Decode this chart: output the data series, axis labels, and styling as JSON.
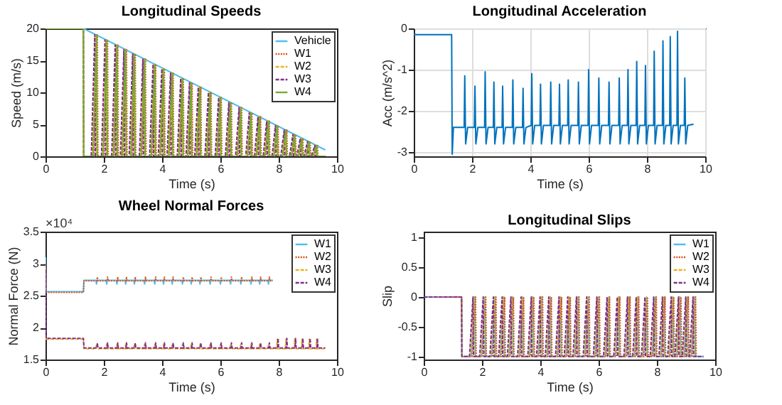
{
  "chart_data": [
    {
      "type": "line",
      "title": "Longitudinal Speeds",
      "xlabel": "Time (s)",
      "ylabel": "Speed (m/s)",
      "xlim": [
        0,
        10
      ],
      "xticks": [
        0,
        2,
        4,
        6,
        8,
        10
      ],
      "ylim": [
        0,
        20
      ],
      "yticks": [
        0,
        5,
        10,
        15,
        20
      ],
      "legend": "top right",
      "series": [
        {
          "name": "Vehicle",
          "color": "#4dbeee",
          "line_style": "solid",
          "x": [
            0,
            1.3,
            9.6
          ],
          "values": [
            20,
            20,
            1
          ]
        },
        {
          "name": "W1",
          "color": "#d95319",
          "line_style": "dotted",
          "x": [
            0,
            1.3,
            1.31,
            1.66,
            1.78,
            1.8,
            2.01,
            2.13,
            2.15,
            2.36,
            2.48,
            2.5,
            2.66,
            2.78,
            2.8,
            2.96,
            3.08,
            3.1,
            3.31,
            3.43,
            3.45,
            3.66,
            3.78,
            3.8,
            3.96,
            4.08,
            4.1,
            4.26,
            4.38,
            4.4,
            4.61,
            4.73,
            4.75,
            4.91,
            5.03,
            5.05,
            5.21,
            5.33,
            5.35,
            5.56,
            5.68,
            5.7,
            5.91,
            6.03,
            6.05,
            6.26,
            6.38,
            6.4,
            6.61,
            6.73,
            6.75,
            6.96,
            7.08,
            7.1,
            7.26,
            7.38,
            7.4,
            7.56,
            7.68,
            7.7,
            7.86,
            7.98,
            8.0,
            8.16,
            8.28,
            8.3,
            8.46,
            8.58,
            8.6,
            8.71,
            8.83,
            8.85,
            8.96,
            9.08,
            9.1,
            9.21,
            9.33,
            9.35,
            9.6
          ],
          "values": [
            20,
            20,
            0,
            0,
            19,
            0,
            0,
            18.2,
            0,
            0,
            17.4,
            0,
            0,
            16.7,
            0,
            0,
            16,
            0,
            0,
            15.2,
            0,
            0,
            14.4,
            0,
            0,
            13.7,
            0,
            0,
            13,
            0,
            0,
            12.2,
            0,
            0,
            11.5,
            0,
            0,
            10.8,
            0,
            0,
            10,
            0,
            0,
            9.2,
            0,
            0,
            8.4,
            0,
            0,
            7.6,
            0,
            0,
            6.8,
            0,
            0,
            6.2,
            0,
            0,
            5.5,
            0,
            0,
            4.8,
            0,
            0,
            4.1,
            0,
            0,
            3.4,
            0,
            0,
            2.8,
            0,
            0,
            2.3,
            0,
            0,
            1.7,
            0,
            0
          ]
        },
        {
          "name": "W2",
          "color": "#edb120",
          "line_style": "dashed",
          "x": [
            0,
            1.3,
            1.31,
            1.6,
            1.72,
            1.74,
            1.95,
            2.07,
            2.09,
            2.3,
            2.42,
            2.44,
            2.6,
            2.72,
            2.74,
            2.9,
            3.02,
            3.04,
            3.25,
            3.37,
            3.39,
            3.6,
            3.72,
            3.74,
            3.9,
            4.02,
            4.04,
            4.2,
            4.32,
            4.34,
            4.55,
            4.67,
            4.69,
            4.85,
            4.97,
            4.99,
            5.15,
            5.27,
            5.29,
            5.5,
            5.62,
            5.64,
            5.85,
            5.97,
            5.99,
            6.2,
            6.32,
            6.34,
            6.55,
            6.67,
            6.69,
            6.9,
            7.02,
            7.04,
            7.2,
            7.32,
            7.34,
            7.5,
            7.62,
            7.64,
            7.8,
            7.92,
            7.94,
            8.1,
            8.22,
            8.24,
            8.4,
            8.52,
            8.54,
            8.65,
            8.77,
            8.79,
            8.9,
            9.02,
            9.04,
            9.15,
            9.27,
            9.29,
            9.6
          ],
          "values": [
            20,
            20,
            0,
            0,
            19,
            0,
            0,
            18.2,
            0,
            0,
            17.4,
            0,
            0,
            16.7,
            0,
            0,
            16,
            0,
            0,
            15.2,
            0,
            0,
            14.4,
            0,
            0,
            13.7,
            0,
            0,
            13,
            0,
            0,
            12.2,
            0,
            0,
            11.5,
            0,
            0,
            10.8,
            0,
            0,
            10,
            0,
            0,
            9.2,
            0,
            0,
            8.4,
            0,
            0,
            7.6,
            0,
            0,
            6.8,
            0,
            0,
            6.2,
            0,
            0,
            5.5,
            0,
            0,
            4.8,
            0,
            0,
            4.1,
            0,
            0,
            3.4,
            0,
            0,
            2.8,
            0,
            0,
            2.3,
            0,
            0,
            1.7,
            0,
            0
          ]
        },
        {
          "name": "W3",
          "color": "#7e2f8e",
          "line_style": "dashed",
          "x": [
            0,
            1.3,
            1.31,
            1.57,
            1.69,
            1.71,
            1.92,
            2.04,
            2.06,
            2.27,
            2.39,
            2.41,
            2.57,
            2.69,
            2.71,
            2.87,
            2.99,
            3.01,
            3.22,
            3.34,
            3.36,
            3.57,
            3.69,
            3.71,
            3.87,
            3.99,
            4.01,
            4.17,
            4.29,
            4.31,
            4.52,
            4.64,
            4.66,
            4.82,
            4.94,
            4.96,
            5.12,
            5.24,
            5.26,
            5.47,
            5.59,
            5.61,
            5.82,
            5.94,
            5.96,
            6.17,
            6.29,
            6.31,
            6.52,
            6.64,
            6.66,
            6.87,
            6.99,
            7.01,
            7.17,
            7.29,
            7.31,
            7.47,
            7.59,
            7.61,
            7.77,
            7.89,
            7.91,
            8.07,
            8.19,
            8.21,
            8.37,
            8.49,
            8.51,
            8.62,
            8.74,
            8.76,
            8.87,
            8.99,
            9.01,
            9.12,
            9.24,
            9.26,
            9.6
          ],
          "values": [
            20,
            20,
            0,
            0,
            19,
            0,
            0,
            18.2,
            0,
            0,
            17.4,
            0,
            0,
            16.7,
            0,
            0,
            16,
            0,
            0,
            15.2,
            0,
            0,
            14.4,
            0,
            0,
            13.7,
            0,
            0,
            13,
            0,
            0,
            12.2,
            0,
            0,
            11.5,
            0,
            0,
            10.8,
            0,
            0,
            10,
            0,
            0,
            9.2,
            0,
            0,
            8.4,
            0,
            0,
            7.6,
            0,
            0,
            6.8,
            0,
            0,
            6.2,
            0,
            0,
            5.5,
            0,
            0,
            4.8,
            0,
            0,
            4.1,
            0,
            0,
            3.4,
            0,
            0,
            2.8,
            0,
            0,
            2.3,
            0,
            0,
            1.7,
            0,
            0
          ]
        },
        {
          "name": "W4",
          "color": "#77ac30",
          "line_style": "solid",
          "x": [
            0,
            1.3,
            1.31,
            1.63,
            1.75,
            1.77,
            1.98,
            2.1,
            2.12,
            2.33,
            2.45,
            2.47,
            2.63,
            2.75,
            2.77,
            2.93,
            3.05,
            3.07,
            3.28,
            3.4,
            3.42,
            3.63,
            3.75,
            3.77,
            3.93,
            4.05,
            4.07,
            4.23,
            4.35,
            4.37,
            4.58,
            4.7,
            4.72,
            4.88,
            5.0,
            5.02,
            5.18,
            5.3,
            5.32,
            5.53,
            5.65,
            5.67,
            5.88,
            6.0,
            6.02,
            6.23,
            6.35,
            6.37,
            6.58,
            6.7,
            6.72,
            6.93,
            7.05,
            7.07,
            7.23,
            7.35,
            7.37,
            7.53,
            7.65,
            7.67,
            7.83,
            7.95,
            7.97,
            8.13,
            8.25,
            8.27,
            8.43,
            8.55,
            8.57,
            8.68,
            8.8,
            8.82,
            8.93,
            9.05,
            9.07,
            9.18,
            9.3,
            9.32,
            9.6
          ],
          "values": [
            20,
            20,
            0,
            0,
            19,
            0,
            0,
            18.2,
            0,
            0,
            17.4,
            0,
            0,
            16.7,
            0,
            0,
            16,
            0,
            0,
            15.2,
            0,
            0,
            14.4,
            0,
            0,
            13.7,
            0,
            0,
            13,
            0,
            0,
            12.2,
            0,
            0,
            11.5,
            0,
            0,
            10.8,
            0,
            0,
            10,
            0,
            0,
            9.2,
            0,
            0,
            8.4,
            0,
            0,
            7.6,
            0,
            0,
            6.8,
            0,
            0,
            6.2,
            0,
            0,
            5.5,
            0,
            0,
            4.8,
            0,
            0,
            4.1,
            0,
            0,
            3.4,
            0,
            0,
            2.8,
            0,
            0,
            2.3,
            0,
            0,
            1.7,
            0,
            0
          ]
        }
      ]
    },
    {
      "type": "line",
      "title": "Longitudinal Acceleration",
      "xlabel": "Time (s)",
      "ylabel": "Acc (m/s^2)",
      "xlim": [
        0,
        10
      ],
      "xticks": [
        0,
        2,
        4,
        6,
        8,
        10
      ],
      "ylim": [
        -3.1,
        0
      ],
      "yticks": [
        -3,
        -2,
        -1,
        0
      ],
      "grid": true,
      "x": [
        0,
        1.3,
        1.32,
        1.36,
        1.73,
        1.75,
        1.78,
        1.85,
        2.08,
        2.1,
        2.13,
        2.2,
        2.43,
        2.45,
        2.48,
        2.55,
        2.73,
        2.75,
        2.78,
        2.85,
        3.03,
        3.05,
        3.08,
        3.15,
        3.38,
        3.4,
        3.43,
        3.5,
        3.73,
        3.75,
        3.78,
        3.85,
        4.03,
        4.05,
        4.08,
        4.15,
        4.33,
        4.35,
        4.38,
        4.45,
        4.68,
        4.7,
        4.73,
        4.8,
        4.98,
        5.0,
        5.03,
        5.1,
        5.28,
        5.3,
        5.33,
        5.4,
        5.63,
        5.65,
        5.68,
        5.75,
        5.98,
        6.0,
        6.03,
        6.1,
        6.33,
        6.35,
        6.38,
        6.45,
        6.68,
        6.7,
        6.73,
        6.8,
        7.03,
        7.05,
        7.08,
        7.15,
        7.33,
        7.35,
        7.38,
        7.45,
        7.63,
        7.65,
        7.68,
        7.75,
        7.93,
        7.95,
        7.98,
        8.05,
        8.23,
        8.25,
        8.28,
        8.35,
        8.53,
        8.55,
        8.58,
        8.65,
        8.78,
        8.8,
        8.83,
        8.9,
        9.03,
        9.05,
        9.08,
        9.15,
        9.28,
        9.3,
        9.33,
        9.4,
        9.6
      ],
      "series": [
        {
          "color": "#0072bd",
          "line_style": "solid",
          "values": [
            -0.15,
            -0.15,
            -3.05,
            -2.4,
            -2.4,
            -1.15,
            -2.8,
            -2.4,
            -2.4,
            -1.4,
            -2.8,
            -2.4,
            -2.4,
            -1.05,
            -2.8,
            -2.4,
            -2.4,
            -1.3,
            -2.8,
            -2.4,
            -2.4,
            -1.4,
            -2.8,
            -2.4,
            -2.4,
            -1.25,
            -2.8,
            -2.4,
            -2.4,
            -1.45,
            -2.8,
            -2.4,
            -2.35,
            -1.1,
            -2.8,
            -2.35,
            -2.35,
            -1.35,
            -2.8,
            -2.35,
            -2.35,
            -1.3,
            -2.8,
            -2.35,
            -2.35,
            -1.35,
            -2.8,
            -2.35,
            -2.35,
            -1.25,
            -2.8,
            -2.35,
            -2.35,
            -1.3,
            -2.8,
            -2.35,
            -2.35,
            -1.0,
            -2.8,
            -2.35,
            -2.35,
            -1.2,
            -2.8,
            -2.35,
            -2.35,
            -1.3,
            -2.8,
            -2.35,
            -2.35,
            -1.2,
            -2.8,
            -2.35,
            -2.35,
            -1.0,
            -2.8,
            -2.35,
            -2.35,
            -0.8,
            -2.8,
            -2.35,
            -2.35,
            -0.9,
            -2.8,
            -2.35,
            -2.35,
            -0.55,
            -2.8,
            -2.35,
            -2.35,
            -0.3,
            -2.8,
            -2.35,
            -2.35,
            -0.2,
            -2.8,
            -2.35,
            -2.35,
            -0.07,
            -2.8,
            -2.35,
            -2.35,
            -1.2,
            -2.8,
            -2.35,
            -2.32
          ]
        }
      ]
    },
    {
      "type": "line",
      "title": "Wheel Normal Forces",
      "xlabel": "Time (s)",
      "ylabel": "Normal Force (N)",
      "annotations": [
        "×10⁴"
      ],
      "xlim": [
        0,
        10
      ],
      "xticks": [
        0,
        2,
        4,
        6,
        8,
        10
      ],
      "ylim": [
        1.5,
        3.5
      ],
      "yticks": [
        1.5,
        2,
        2.5,
        3,
        3.5
      ],
      "legend": "top right",
      "series": [
        {
          "name": "W1",
          "color": "#4dbeee",
          "line_style": "solid",
          "x": [
            0,
            0.02,
            1.3,
            1.32,
            1.73,
            1.75,
            1.77,
            2.08,
            2.1,
            2.12,
            2.43,
            2.45,
            2.47,
            2.73,
            2.75,
            2.77,
            3.03,
            3.05,
            3.07,
            3.38,
            3.4,
            3.42,
            3.73,
            3.75,
            3.77,
            4.03,
            4.05,
            4.07,
            4.33,
            4.35,
            4.37,
            4.68,
            4.7,
            4.72,
            4.98,
            5.0,
            5.02,
            5.28,
            5.3,
            5.32,
            5.63,
            5.65,
            5.67,
            5.98,
            6.0,
            6.02,
            6.33,
            6.35,
            6.37,
            6.68,
            6.7,
            6.72,
            7.03,
            7.05,
            7.07,
            7.33,
            7.35,
            7.37,
            7.63,
            7.65,
            7.67,
            7.8
          ],
          "values": [
            3.1,
            2.56,
            2.56,
            2.74,
            2.74,
            2.68,
            2.74,
            2.74,
            2.68,
            2.74,
            2.74,
            2.68,
            2.74,
            2.74,
            2.68,
            2.74,
            2.74,
            2.68,
            2.74,
            2.74,
            2.68,
            2.74,
            2.74,
            2.68,
            2.74,
            2.74,
            2.68,
            2.74,
            2.74,
            2.68,
            2.74,
            2.74,
            2.68,
            2.74,
            2.74,
            2.68,
            2.74,
            2.74,
            2.68,
            2.74,
            2.74,
            2.68,
            2.74,
            2.74,
            2.68,
            2.74,
            2.74,
            2.68,
            2.74,
            2.74,
            2.68,
            2.74,
            2.74,
            2.68,
            2.74,
            2.74,
            2.68,
            2.74,
            2.74,
            2.68,
            2.74,
            2.74
          ]
        },
        {
          "name": "W2",
          "color": "#d95319",
          "line_style": "dotted",
          "x": [
            0,
            0.02,
            1.3,
            1.32,
            1.76,
            1.78,
            1.8,
            2.11,
            2.13,
            2.15,
            2.46,
            2.48,
            2.5,
            2.76,
            2.78,
            2.8,
            3.06,
            3.08,
            3.1,
            3.41,
            3.43,
            3.45,
            3.76,
            3.78,
            3.8,
            4.06,
            4.08,
            4.1,
            4.36,
            4.38,
            4.4,
            4.71,
            4.73,
            4.75,
            5.01,
            5.03,
            5.05,
            5.31,
            5.33,
            5.35,
            5.66,
            5.68,
            5.7,
            6.01,
            6.03,
            6.05,
            6.36,
            6.38,
            6.4,
            6.71,
            6.73,
            6.75,
            7.06,
            7.08,
            7.1,
            7.36,
            7.38,
            7.4,
            7.66,
            7.68,
            7.7,
            7.8
          ],
          "values": [
            3.0,
            2.55,
            2.55,
            2.73,
            2.73,
            2.79,
            2.73,
            2.73,
            2.79,
            2.73,
            2.73,
            2.79,
            2.73,
            2.73,
            2.79,
            2.73,
            2.73,
            2.79,
            2.73,
            2.73,
            2.79,
            2.73,
            2.73,
            2.79,
            2.73,
            2.73,
            2.79,
            2.73,
            2.73,
            2.79,
            2.73,
            2.73,
            2.79,
            2.73,
            2.73,
            2.79,
            2.73,
            2.73,
            2.79,
            2.73,
            2.73,
            2.79,
            2.73,
            2.73,
            2.79,
            2.73,
            2.73,
            2.79,
            2.73,
            2.73,
            2.79,
            2.73,
            2.73,
            2.79,
            2.73,
            2.73,
            2.79,
            2.73,
            2.73,
            2.79,
            2.73,
            2.73
          ]
        },
        {
          "name": "W3",
          "color": "#edb120",
          "line_style": "dashed",
          "x": [
            0,
            0.02,
            1.3,
            1.32,
            1.73,
            1.75,
            1.77,
            2.08,
            2.1,
            2.12,
            2.43,
            2.45,
            2.47,
            2.73,
            2.75,
            2.77,
            3.03,
            3.05,
            3.07,
            3.38,
            3.4,
            3.42,
            3.73,
            3.75,
            3.77,
            4.03,
            4.05,
            4.07,
            4.33,
            4.35,
            4.37,
            4.68,
            4.7,
            4.72,
            4.98,
            5.0,
            5.02,
            5.28,
            5.3,
            5.32,
            5.63,
            5.65,
            5.67,
            5.98,
            6.0,
            6.02,
            6.33,
            6.35,
            6.37,
            6.68,
            6.7,
            6.72,
            7.03,
            7.05,
            7.07,
            7.33,
            7.35,
            7.37,
            7.63,
            7.65,
            7.67,
            7.93,
            7.95,
            7.97,
            8.23,
            8.25,
            8.27,
            8.53,
            8.55,
            8.57,
            8.78,
            8.8,
            8.82,
            9.03,
            9.05,
            9.07,
            9.28,
            9.3,
            9.32,
            9.6
          ],
          "values": [
            1.82,
            1.82,
            1.82,
            1.67,
            1.67,
            1.74,
            1.67,
            1.67,
            1.74,
            1.67,
            1.67,
            1.74,
            1.67,
            1.67,
            1.74,
            1.67,
            1.67,
            1.74,
            1.67,
            1.67,
            1.74,
            1.67,
            1.67,
            1.74,
            1.67,
            1.67,
            1.74,
            1.67,
            1.67,
            1.74,
            1.67,
            1.67,
            1.74,
            1.67,
            1.67,
            1.74,
            1.67,
            1.67,
            1.74,
            1.67,
            1.67,
            1.74,
            1.67,
            1.67,
            1.74,
            1.67,
            1.67,
            1.74,
            1.67,
            1.67,
            1.74,
            1.67,
            1.67,
            1.74,
            1.67,
            1.67,
            1.74,
            1.67,
            1.67,
            1.74,
            1.67,
            1.67,
            1.82,
            1.67,
            1.67,
            1.82,
            1.67,
            1.67,
            1.82,
            1.67,
            1.67,
            1.82,
            1.67,
            1.67,
            1.82,
            1.67,
            1.67,
            1.82,
            1.67,
            1.67
          ]
        },
        {
          "name": "W4",
          "color": "#7e2f8e",
          "line_style": "dashed",
          "x": [
            0,
            0.02,
            1.3,
            1.32,
            1.76,
            1.78,
            1.8,
            2.11,
            2.13,
            2.15,
            2.46,
            2.48,
            2.5,
            2.76,
            2.78,
            2.8,
            3.06,
            3.08,
            3.1,
            3.41,
            3.43,
            3.45,
            3.76,
            3.78,
            3.8,
            4.06,
            4.08,
            4.1,
            4.36,
            4.38,
            4.4,
            4.71,
            4.73,
            4.75,
            5.01,
            5.03,
            5.05,
            5.31,
            5.33,
            5.35,
            5.66,
            5.68,
            5.7,
            6.01,
            6.03,
            6.05,
            6.36,
            6.38,
            6.4,
            6.71,
            6.73,
            6.75,
            7.06,
            7.08,
            7.1,
            7.36,
            7.38,
            7.4,
            7.66,
            7.68,
            7.7,
            7.96,
            7.98,
            8.0,
            8.26,
            8.28,
            8.3,
            8.56,
            8.58,
            8.6,
            8.81,
            8.83,
            8.85,
            9.06,
            9.08,
            9.1,
            9.31,
            9.33,
            9.35,
            9.6
          ],
          "values": [
            2.9,
            1.83,
            1.83,
            1.68,
            1.68,
            1.76,
            1.68,
            1.68,
            1.76,
            1.68,
            1.68,
            1.76,
            1.68,
            1.68,
            1.76,
            1.68,
            1.68,
            1.76,
            1.68,
            1.68,
            1.76,
            1.68,
            1.68,
            1.76,
            1.68,
            1.68,
            1.76,
            1.68,
            1.68,
            1.76,
            1.68,
            1.68,
            1.76,
            1.68,
            1.68,
            1.76,
            1.68,
            1.68,
            1.76,
            1.68,
            1.68,
            1.76,
            1.68,
            1.68,
            1.76,
            1.68,
            1.68,
            1.76,
            1.68,
            1.68,
            1.76,
            1.68,
            1.68,
            1.76,
            1.68,
            1.68,
            1.76,
            1.68,
            1.68,
            1.76,
            1.68,
            1.68,
            1.83,
            1.68,
            1.68,
            1.83,
            1.68,
            1.68,
            1.83,
            1.68,
            1.68,
            1.83,
            1.68,
            1.68,
            1.83,
            1.68,
            1.68,
            1.83,
            1.68,
            1.68
          ]
        }
      ]
    },
    {
      "type": "line",
      "title": "Longitudinal Slips",
      "xlabel": "Time (s)",
      "ylabel": "Slip",
      "xlim": [
        0,
        10
      ],
      "xticks": [
        0,
        2,
        4,
        6,
        8,
        10
      ],
      "ylim": [
        -1.05,
        1.1
      ],
      "yticks": [
        -1,
        -0.5,
        0,
        0.5,
        1
      ],
      "legend": "top right",
      "series": [
        {
          "name": "W1",
          "color": "#4dbeee",
          "line_style": "solid",
          "x": [
            0,
            1.3,
            1.31,
            1.63,
            1.75,
            1.77,
            1.98,
            2.1,
            2.12,
            2.33,
            2.45,
            2.47,
            2.63,
            2.75,
            2.77,
            2.93,
            3.05,
            3.07,
            3.28,
            3.4,
            3.42,
            3.63,
            3.75,
            3.77,
            3.93,
            4.05,
            4.07,
            4.23,
            4.35,
            4.37,
            4.58,
            4.7,
            4.72,
            4.88,
            5.0,
            5.02,
            5.18,
            5.3,
            5.32,
            5.53,
            5.65,
            5.67,
            5.88,
            6.0,
            6.02,
            6.23,
            6.35,
            6.37,
            6.58,
            6.7,
            6.72,
            6.93,
            7.05,
            7.07,
            7.23,
            7.35,
            7.37,
            7.53,
            7.65,
            7.67,
            7.83,
            7.95,
            7.97,
            8.13,
            8.25,
            8.27,
            8.43,
            8.55,
            8.57,
            8.68,
            8.8,
            8.82,
            8.93,
            9.05,
            9.07,
            9.18,
            9.3,
            9.32,
            9.6
          ],
          "values": [
            0,
            0,
            -1,
            -1,
            0,
            -1,
            -1,
            0,
            -1,
            -1,
            0,
            -1,
            -1,
            0,
            -1,
            -1,
            0,
            -1,
            -1,
            0,
            -1,
            -1,
            0,
            -1,
            -1,
            0,
            -1,
            -1,
            0,
            -1,
            -1,
            0,
            -1,
            -1,
            0,
            -1,
            -1,
            0,
            -1,
            -1,
            0,
            -1,
            -1,
            0,
            -1,
            -1,
            0,
            -1,
            -1,
            0,
            -1,
            -1,
            0,
            -1,
            -1,
            0,
            -1,
            -1,
            0,
            -1,
            -1,
            0,
            -1,
            -1,
            0,
            -1,
            -1,
            0,
            -1,
            -1,
            0,
            -1,
            -1,
            0,
            -1,
            -1,
            0,
            -1,
            -1
          ]
        },
        {
          "name": "W2",
          "color": "#d95319",
          "line_style": "dotted",
          "x": [
            0,
            1.3,
            1.31,
            1.66,
            1.78,
            1.8,
            2.01,
            2.13,
            2.15,
            2.36,
            2.48,
            2.5,
            2.66,
            2.78,
            2.8,
            2.96,
            3.08,
            3.1,
            3.31,
            3.43,
            3.45,
            3.66,
            3.78,
            3.8,
            3.96,
            4.08,
            4.1,
            4.26,
            4.38,
            4.4,
            4.61,
            4.73,
            4.75,
            4.91,
            5.03,
            5.05,
            5.21,
            5.33,
            5.35,
            5.56,
            5.68,
            5.7,
            5.91,
            6.03,
            6.05,
            6.26,
            6.38,
            6.4,
            6.61,
            6.73,
            6.75,
            6.96,
            7.08,
            7.1,
            7.26,
            7.38,
            7.4,
            7.56,
            7.68,
            7.7,
            7.86,
            7.98,
            8.0,
            8.16,
            8.28,
            8.3,
            8.46,
            8.58,
            8.6,
            8.71,
            8.83,
            8.85,
            8.96,
            9.08,
            9.1,
            9.21,
            9.33,
            9.35
          ],
          "values": [
            0,
            0,
            -1,
            -1,
            0,
            -1,
            -1,
            0,
            -1,
            -1,
            0,
            -1,
            -1,
            0,
            -1,
            -1,
            0,
            -1,
            -1,
            0,
            -1,
            -1,
            0,
            -1,
            -1,
            0,
            -1,
            -1,
            0,
            -1,
            -1,
            0,
            -1,
            -1,
            0,
            -1,
            -1,
            0,
            -1,
            -1,
            0,
            -1,
            -1,
            0,
            -1,
            -1,
            0,
            -1,
            -1,
            0,
            -1,
            -1,
            0,
            -1,
            -1,
            0,
            -1,
            -1,
            0,
            -1,
            -1,
            0,
            -1,
            -1,
            0,
            -1,
            -1,
            0,
            -1,
            -1,
            0,
            -1,
            -1,
            0,
            -1,
            -1,
            0,
            -1
          ]
        },
        {
          "name": "W3",
          "color": "#edb120",
          "line_style": "dashed",
          "x": [
            0,
            1.3,
            1.31,
            1.6,
            1.72,
            1.74,
            1.95,
            2.07,
            2.09,
            2.3,
            2.42,
            2.44,
            2.6,
            2.72,
            2.74,
            2.9,
            3.02,
            3.04,
            3.25,
            3.37,
            3.39,
            3.6,
            3.72,
            3.74,
            3.9,
            4.02,
            4.04,
            4.2,
            4.32,
            4.34,
            4.55,
            4.67,
            4.69,
            4.85,
            4.97,
            4.99,
            5.15,
            5.27,
            5.29,
            5.5,
            5.62,
            5.64,
            5.85,
            5.97,
            5.99,
            6.2,
            6.32,
            6.34,
            6.55,
            6.67,
            6.69,
            6.9,
            7.02,
            7.04,
            7.2,
            7.32,
            7.34,
            7.5,
            7.62,
            7.64,
            7.8,
            7.92,
            7.94,
            8.1,
            8.22,
            8.24,
            8.4,
            8.52,
            8.54,
            8.65,
            8.77,
            8.79,
            8.9,
            9.02,
            9.04,
            9.15,
            9.27,
            9.29
          ],
          "values": [
            0,
            0,
            -1,
            -1,
            0,
            -1,
            -1,
            0,
            -1,
            -1,
            0,
            -1,
            -1,
            0,
            -1,
            -1,
            0,
            -1,
            -1,
            0,
            -1,
            -1,
            0,
            -1,
            -1,
            0,
            -1,
            -1,
            0,
            -1,
            -1,
            0,
            -1,
            -1,
            0,
            -1,
            -1,
            0,
            -1,
            -1,
            0,
            -1,
            -1,
            0,
            -1,
            -1,
            0,
            -1,
            -1,
            0,
            -1,
            -1,
            0,
            -1,
            -1,
            0,
            -1,
            -1,
            0,
            -1,
            -1,
            0,
            -1,
            -1,
            0,
            -1,
            -1,
            0,
            -1,
            -1,
            0,
            -1,
            -1,
            0,
            -1,
            -1,
            0,
            -1
          ]
        },
        {
          "name": "W4",
          "color": "#7e2f8e",
          "line_style": "dashed",
          "x": [
            0,
            1.3,
            1.31,
            1.57,
            1.69,
            1.71,
            1.92,
            2.04,
            2.06,
            2.27,
            2.39,
            2.41,
            2.57,
            2.69,
            2.71,
            2.87,
            2.99,
            3.01,
            3.22,
            3.34,
            3.36,
            3.57,
            3.69,
            3.71,
            3.87,
            3.99,
            4.01,
            4.17,
            4.29,
            4.31,
            4.52,
            4.64,
            4.66,
            4.82,
            4.94,
            4.96,
            5.12,
            5.24,
            5.26,
            5.47,
            5.59,
            5.61,
            5.82,
            5.94,
            5.96,
            6.17,
            6.29,
            6.31,
            6.52,
            6.64,
            6.66,
            6.87,
            6.99,
            7.01,
            7.17,
            7.29,
            7.31,
            7.47,
            7.59,
            7.61,
            7.77,
            7.89,
            7.91,
            8.07,
            8.19,
            8.21,
            8.37,
            8.49,
            8.51,
            8.62,
            8.74,
            8.76,
            8.87,
            8.99,
            9.01,
            9.12,
            9.24,
            9.26,
            9.6
          ],
          "values": [
            0,
            0,
            -1,
            -1,
            0,
            -1,
            -1,
            0,
            -1,
            -1,
            0,
            -1,
            -1,
            0,
            -1,
            -1,
            0,
            -1,
            -1,
            0,
            -1,
            -1,
            0,
            -1,
            -1,
            0,
            -1,
            -1,
            0,
            -1,
            -1,
            0,
            -1,
            -1,
            0,
            -1,
            -1,
            0,
            -1,
            -1,
            0,
            -1,
            -1,
            0,
            -1,
            -1,
            0,
            -1,
            -1,
            0,
            -1,
            -1,
            0,
            -1,
            -1,
            0,
            -1,
            -1,
            0,
            -1,
            -1,
            0,
            -1,
            -1,
            0,
            -1,
            -1,
            0,
            -1,
            -1,
            0,
            -1,
            -1,
            0,
            -1,
            -1,
            0,
            -1,
            -1
          ]
        }
      ]
    }
  ]
}
